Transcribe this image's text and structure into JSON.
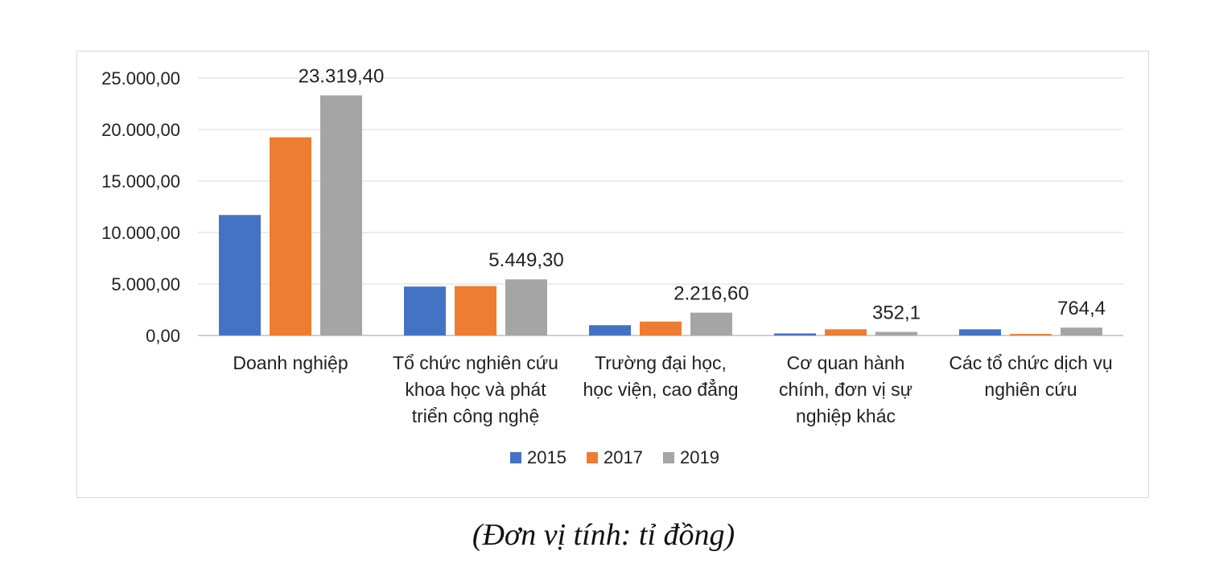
{
  "chart_data": {
    "type": "bar",
    "categories": [
      [
        "Doanh nghiệp"
      ],
      [
        "Tổ chức nghiên cứu",
        "khoa học và phát",
        "triển công nghệ"
      ],
      [
        "Trường đại học,",
        "học viện, cao đẳng"
      ],
      [
        "Cơ quan hành",
        "chính, đơn vị sự",
        "nghiệp khác"
      ],
      [
        "Các tổ chức dịch vụ",
        "nghiên cứu"
      ]
    ],
    "series": [
      {
        "name": "2015",
        "color": "#4472c4",
        "values": [
          11700,
          4750,
          1000,
          200,
          600
        ]
      },
      {
        "name": "2017",
        "color": "#ed7d31",
        "values": [
          19250,
          4800,
          1350,
          600,
          150
        ]
      },
      {
        "name": "2019",
        "color": "#a5a5a5",
        "values": [
          23319.4,
          5449.3,
          2216.6,
          352.1,
          764.4
        ]
      }
    ],
    "data_labels": [
      "23.319,40",
      "5.449,30",
      "2.216,60",
      "352,1",
      "764,4"
    ],
    "y_ticks": [
      "0,00",
      "5.000,00",
      "10.000,00",
      "15.000,00",
      "20.000,00",
      "25.000,00"
    ],
    "ylim": [
      0,
      25000
    ],
    "grid": true,
    "legend_position": "bottom"
  },
  "caption": "(Đơn vị tính: tỉ đồng)"
}
